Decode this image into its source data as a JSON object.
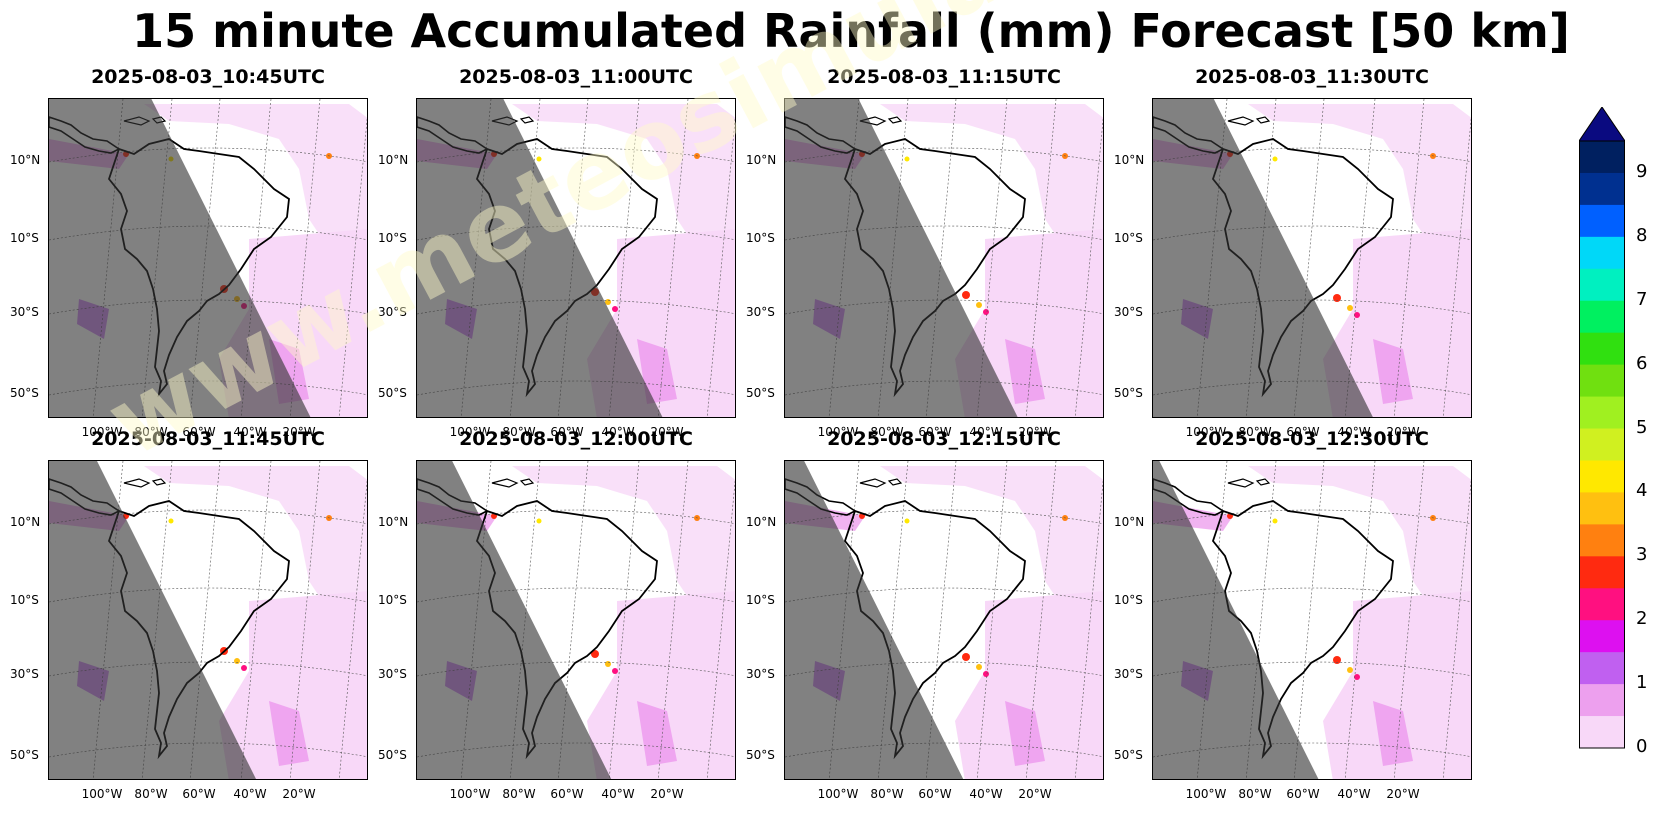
{
  "figure": {
    "title": "15 minute Accumulated Rainfall (mm) Forecast [50 km]",
    "watermark": "www.meteosimulation.com"
  },
  "panels": [
    {
      "time": "2025-08-03_10:45UTC",
      "night_fraction": 0.67
    },
    {
      "time": "2025-08-03_11:00UTC",
      "night_fraction": 0.62
    },
    {
      "time": "2025-08-03_11:15UTC",
      "night_fraction": 0.58
    },
    {
      "time": "2025-08-03_11:30UTC",
      "night_fraction": 0.54
    },
    {
      "time": "2025-08-03_11:45UTC",
      "night_fraction": 0.5
    },
    {
      "time": "2025-08-03_12:00UTC",
      "night_fraction": 0.46
    },
    {
      "time": "2025-08-03_12:15UTC",
      "night_fraction": 0.41
    },
    {
      "time": "2025-08-03_12:30UTC",
      "night_fraction": 0.37
    }
  ],
  "axes": {
    "lat_labels": [
      "10°N",
      "10°S",
      "30°S",
      "50°S"
    ],
    "lon_labels": [
      "100°W",
      "80°W",
      "60°W",
      "40°W",
      "20°W"
    ]
  },
  "colorbar": {
    "ticks": [
      "0",
      "1",
      "2",
      "3",
      "4",
      "5",
      "6",
      "7",
      "8",
      "9"
    ],
    "colors": [
      "#f8d8f8",
      "#eda0ee",
      "#c060f0",
      "#dd10f0",
      "#ff1080",
      "#ff2a10",
      "#ff8010",
      "#ffc010",
      "#ffe800",
      "#d0f020",
      "#a0f020",
      "#70e010",
      "#30e010",
      "#00f060",
      "#00f0c0",
      "#00d8f8",
      "#0060ff",
      "#003090",
      "#002060"
    ],
    "extend_color": "#0a0a80"
  }
}
